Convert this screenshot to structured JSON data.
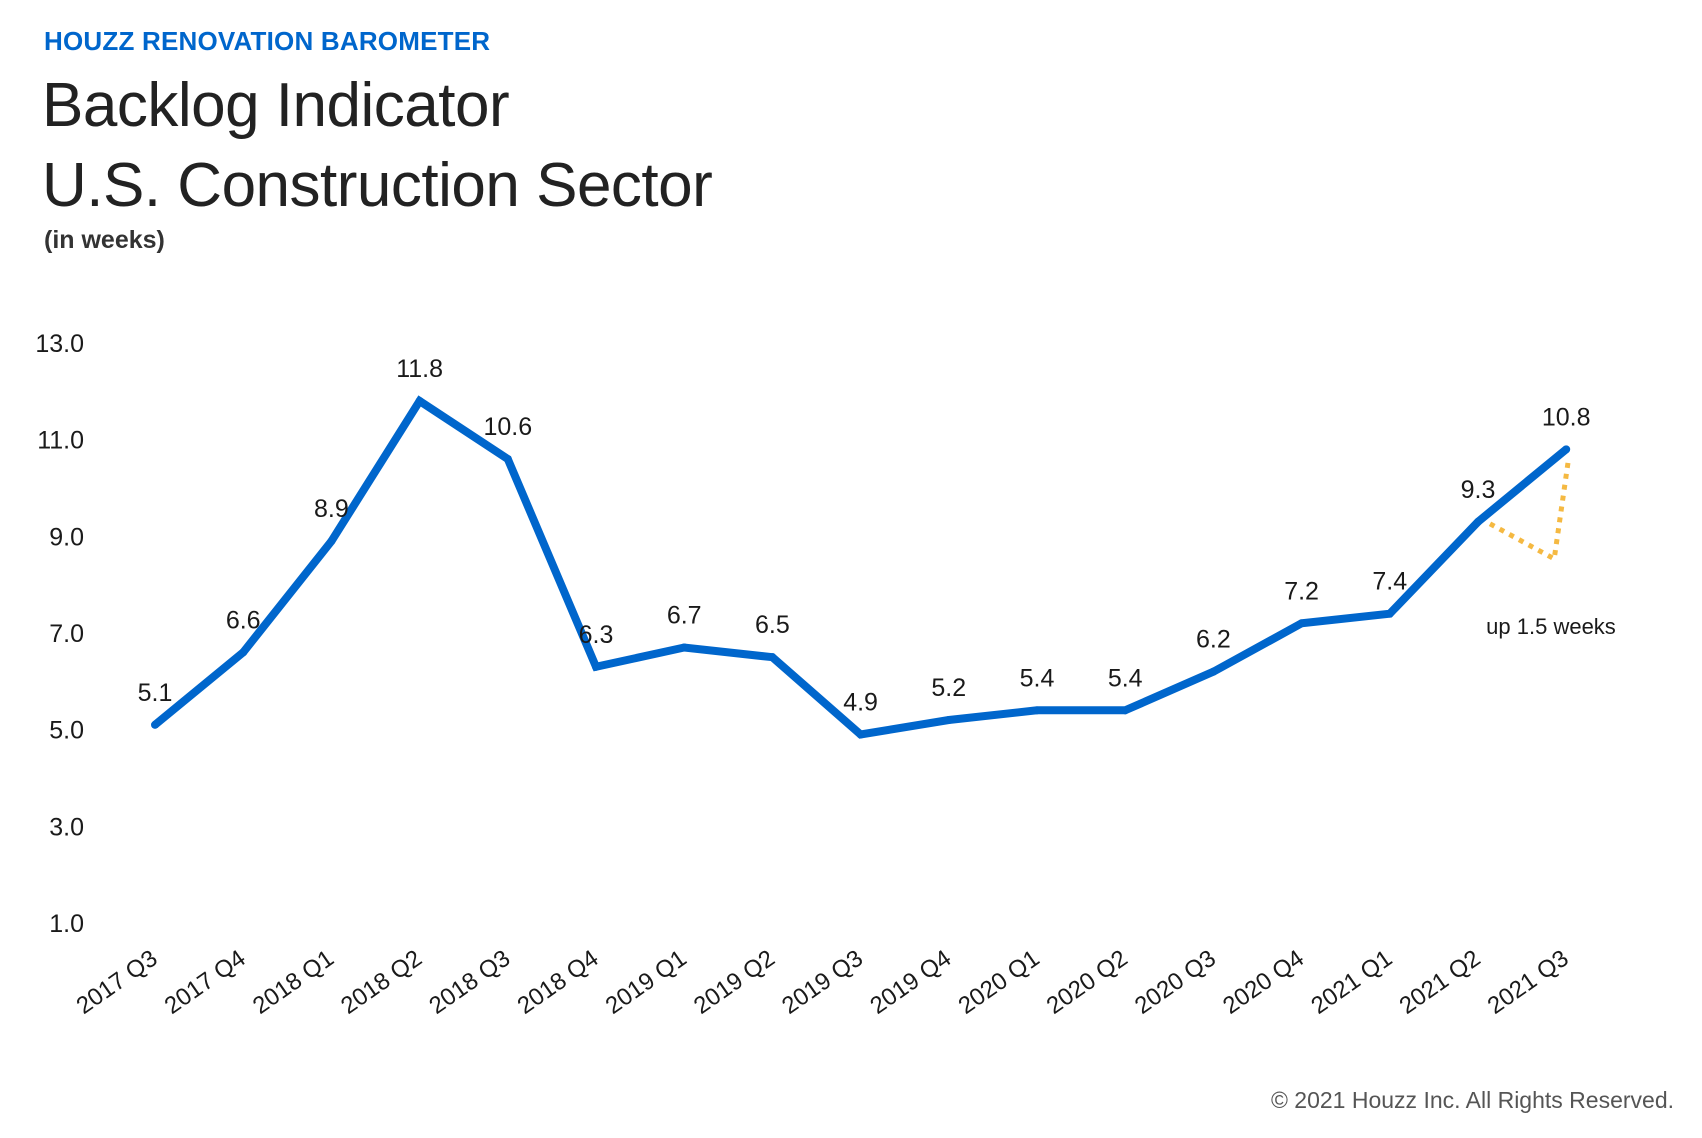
{
  "header": {
    "kicker": "HOUZZ RENOVATION BAROMETER",
    "title_line1": "Backlog Indicator",
    "title_line2": "U.S. Construction Sector",
    "subtitle": "(in weeks)"
  },
  "footer": {
    "copyright": "© 2021 Houzz Inc. All Rights Reserved."
  },
  "colors": {
    "line": "#0066cc",
    "annotation": "#f5b942",
    "kicker": "#0066cc"
  },
  "chart_data": {
    "type": "line",
    "title": "Backlog Indicator U.S. Construction Sector",
    "ylabel": "(in weeks)",
    "xlabel": "",
    "categories": [
      "2017 Q3",
      "2017 Q4",
      "2018 Q1",
      "2018 Q2",
      "2018 Q3",
      "2018 Q4",
      "2019 Q1",
      "2019 Q2",
      "2019 Q3",
      "2019 Q4",
      "2020 Q1",
      "2020 Q2",
      "2020 Q3",
      "2020 Q4",
      "2021 Q1",
      "2021 Q2",
      "2021 Q3"
    ],
    "values": [
      5.1,
      6.6,
      8.9,
      11.8,
      10.6,
      6.3,
      6.7,
      6.5,
      4.9,
      5.2,
      5.4,
      5.4,
      6.2,
      7.2,
      7.4,
      9.3,
      10.8
    ],
    "data_labels": [
      "5.1",
      "6.6",
      "8.9",
      "11.8",
      "10.6",
      "6.3",
      "6.7",
      "6.5",
      "4.9",
      "5.2",
      "5.4",
      "5.4",
      "6.2",
      "7.2",
      "7.4",
      "9.3",
      "10.8"
    ],
    "yticks": [
      "13.0",
      "11.0",
      "9.0",
      "7.0",
      "5.0",
      "3.0",
      "1.0"
    ],
    "ylim": [
      1.0,
      13.0
    ],
    "grid": false,
    "legend": "none",
    "annotation": {
      "text": "up 1.5 weeks",
      "from_category": "2021 Q2",
      "to_category": "2021 Q3",
      "style": "dotted"
    }
  }
}
